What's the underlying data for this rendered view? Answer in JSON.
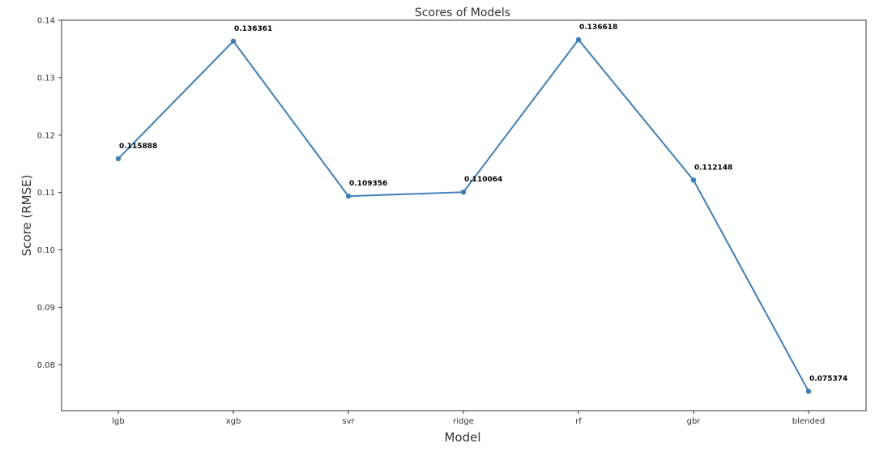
{
  "chart_data": {
    "type": "line",
    "title": "Scores of Models",
    "xlabel": "Model",
    "ylabel": "Score (RMSE)",
    "categories": [
      "lgb",
      "xgb",
      "svr",
      "ridge",
      "rf",
      "gbr",
      "blended"
    ],
    "series": [
      {
        "values": [
          0.115888,
          0.136361,
          0.109356,
          0.110064,
          0.136618,
          0.112148,
          0.075374
        ],
        "data_labels": [
          "0.115888",
          "0.136361",
          "0.109356",
          "0.110064",
          "0.136618",
          "0.112148",
          "0.075374"
        ],
        "color": "#3e7fb6"
      }
    ],
    "ylim": [
      0.072,
      0.14
    ],
    "yticks": [
      0.08,
      0.09,
      0.1,
      0.11,
      0.12,
      0.13,
      0.14
    ],
    "ytick_labels": [
      "0.08",
      "0.09",
      "0.10",
      "0.11",
      "0.12",
      "0.13",
      "0.14"
    ],
    "grid": false,
    "legend": "none"
  }
}
